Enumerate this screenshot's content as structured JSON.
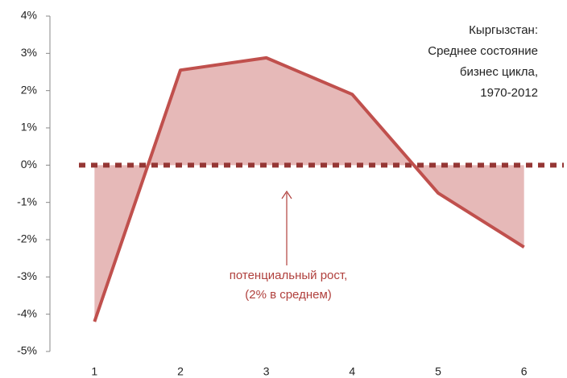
{
  "chart_data": {
    "type": "area-line",
    "title_lines": [
      "Кыргызстан:",
      "Среднее состояние",
      "бизнес цикла,",
      "1970-2012"
    ],
    "annotation_lines": [
      "потенциальный рост,",
      "(2%  в среднем)"
    ],
    "categories": [
      "1",
      "2",
      "3",
      "4",
      "5",
      "6"
    ],
    "values": [
      -4.2,
      2.55,
      2.88,
      1.9,
      -0.75,
      -2.2
    ],
    "color": "#c0504d",
    "fill": "#e6b9b8",
    "ylim": [
      -5,
      4
    ],
    "yticks": [
      {
        "value": -5,
        "label": "-5%"
      },
      {
        "value": -4,
        "label": "-4%"
      },
      {
        "value": -3,
        "label": "-3%"
      },
      {
        "value": -2,
        "label": "-2%"
      },
      {
        "value": -1,
        "label": "-1%"
      },
      {
        "value": 0,
        "label": "0%"
      },
      {
        "value": 1,
        "label": "1%"
      },
      {
        "value": 2,
        "label": "2%"
      },
      {
        "value": 3,
        "label": "3%"
      },
      {
        "value": 4,
        "label": "4%"
      }
    ]
  }
}
